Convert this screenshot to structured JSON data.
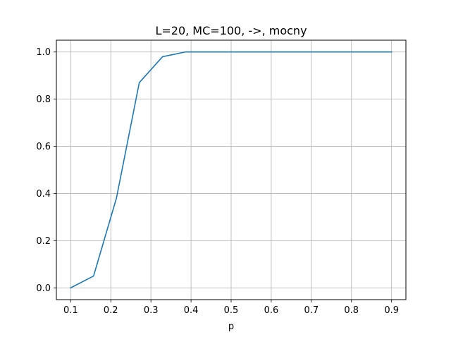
{
  "chart_data": {
    "type": "line",
    "title": "L=20, MC=100, ->, mocny",
    "xlabel": "p",
    "ylabel": "",
    "xlim": [
      0.0643,
      0.9357
    ],
    "ylim": [
      -0.05,
      1.05
    ],
    "xticks": [
      0.1,
      0.2,
      0.3,
      0.4,
      0.5,
      0.6,
      0.7,
      0.8,
      0.9
    ],
    "xtick_labels": [
      "0.1",
      "0.2",
      "0.3",
      "0.4",
      "0.5",
      "0.6",
      "0.7",
      "0.8",
      "0.9"
    ],
    "yticks": [
      0.0,
      0.2,
      0.4,
      0.6,
      0.8,
      1.0
    ],
    "ytick_labels": [
      "0.0",
      "0.2",
      "0.4",
      "0.6",
      "0.8",
      "1.0"
    ],
    "grid": true,
    "series": [
      {
        "color": "#1f77b4",
        "x": [
          0.1,
          0.157,
          0.214,
          0.271,
          0.329,
          0.386,
          0.443,
          0.5,
          0.557,
          0.614,
          0.671,
          0.729,
          0.786,
          0.843,
          0.9
        ],
        "y": [
          0.0,
          0.05,
          0.38,
          0.87,
          0.98,
          1.0,
          1.0,
          1.0,
          1.0,
          1.0,
          1.0,
          1.0,
          1.0,
          1.0,
          1.0
        ]
      }
    ]
  }
}
